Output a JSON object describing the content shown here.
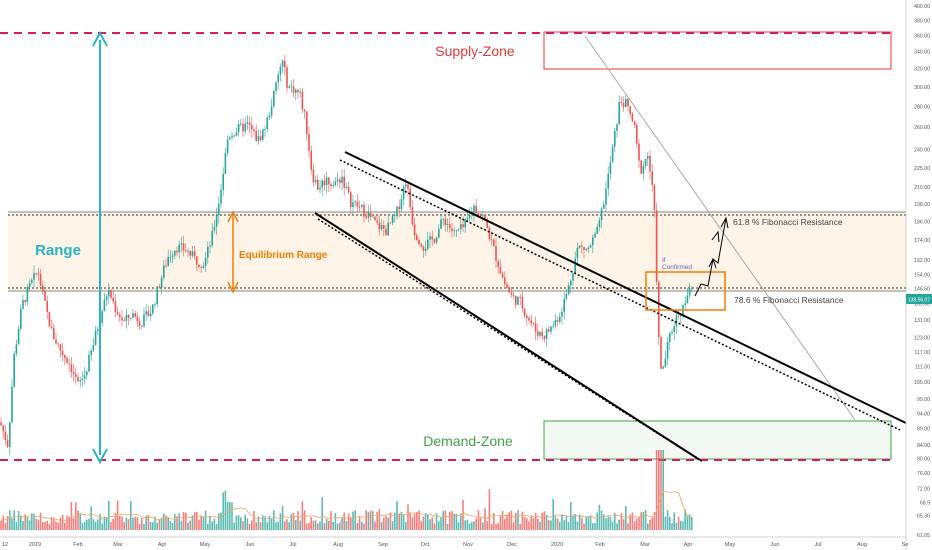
{
  "chart_data": {
    "type": "candlestick",
    "x_axis": {
      "labels": [
        "12",
        "2019",
        "Feb",
        "Mar",
        "Apr",
        "May",
        "Jun",
        "Jul",
        "Aug",
        "Sep",
        "Oct",
        "Nov",
        "Dec",
        "2020",
        "Feb",
        "Mar",
        "Apr",
        "May",
        "Jun",
        "Jul",
        "Aug",
        "Se"
      ]
    },
    "y_axis": {
      "scale": "log",
      "range": [
        61,
        410
      ],
      "ticks": [
        61.05,
        65.36,
        68.5,
        72.0,
        76.0,
        80.0,
        84.0,
        89.0,
        94.0,
        99.0,
        105.0,
        111.0,
        117.0,
        123.0,
        131.0,
        139.0,
        146.5,
        154.0,
        162.0,
        174.0,
        186.0,
        198.0,
        210.0,
        225.0,
        240.0,
        260.0,
        280.0,
        300.0,
        320.0,
        340.0,
        360.0,
        380.0,
        400.0
      ]
    },
    "current_price": "138.56.07",
    "annotations": {
      "supply_zone": "Supply-Zone",
      "demand_zone": "Demand-Zone",
      "range": "Range",
      "equilibrium_range": "Equilibrium Range",
      "fib_618": "61.8 % Fibonacci Resistance",
      "fib_786": "78.6 % Fibonacci Resistance",
      "confirmed_line1": "If",
      "confirmed_line2": "Confirmed"
    },
    "levels": {
      "range_top": 360,
      "range_bottom": 81,
      "equilibrium_top": 196,
      "equilibrium_bottom": 146.5,
      "supply_zone": [
        320,
        362
      ],
      "demand_zone": [
        81,
        92
      ]
    },
    "colors": {
      "up": "#26a69a",
      "down": "#ef5350",
      "supply": "#e53935",
      "demand": "#43a047",
      "range_arrow": "#26b5c6",
      "equilibrium": "#f57c00",
      "band_fill": "#fdf3e6"
    }
  }
}
